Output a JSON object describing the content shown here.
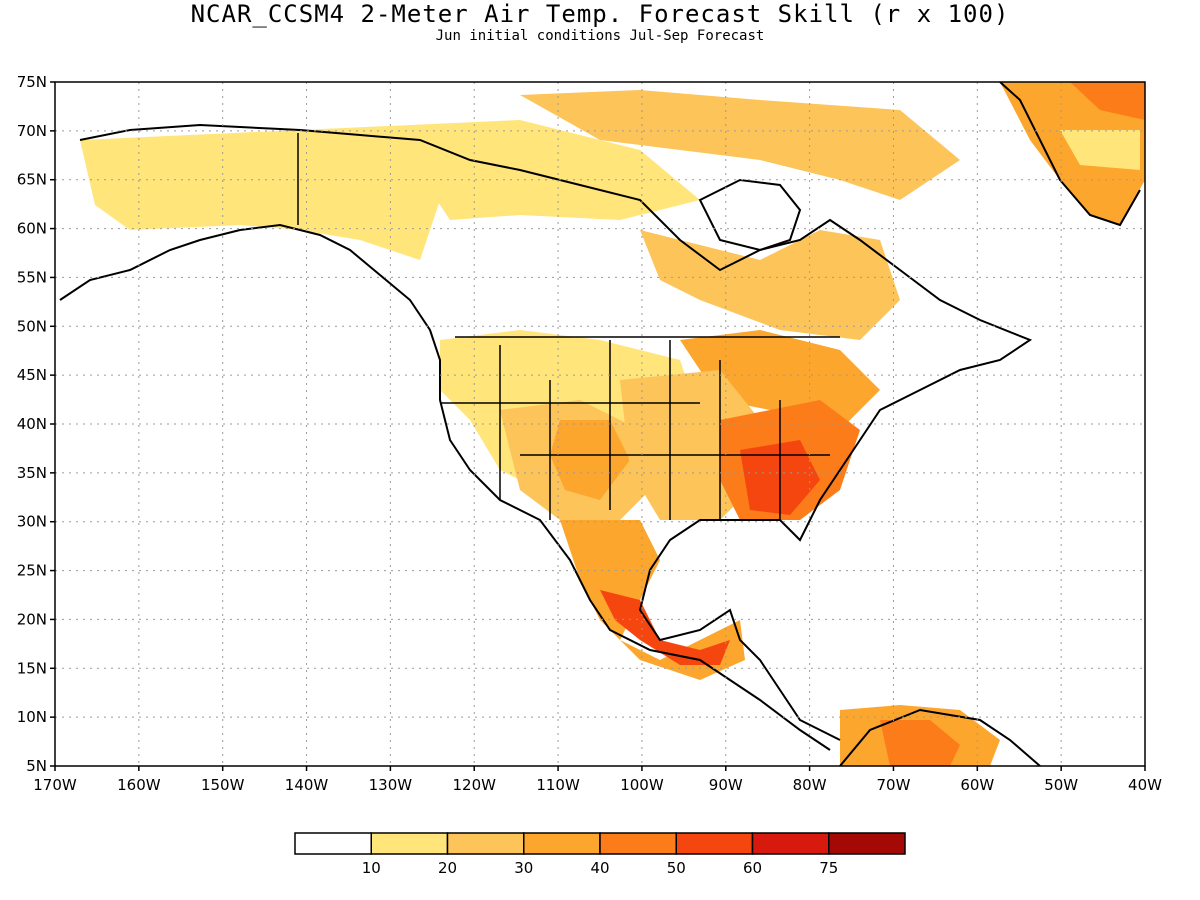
{
  "title": "NCAR_CCSM4 2-Meter Air Temp. Forecast Skill (r x 100)",
  "subtitle": "Jun initial conditions   Jul-Sep Forecast",
  "map": {
    "lon_range": [
      -170,
      -40
    ],
    "lat_range": [
      5,
      75
    ],
    "lon_ticks": [
      "170W",
      "160W",
      "150W",
      "140W",
      "130W",
      "120W",
      "110W",
      "100W",
      "90W",
      "80W",
      "70W",
      "60W",
      "50W",
      "40W"
    ],
    "lat_ticks": [
      "75N",
      "70N",
      "65N",
      "60N",
      "55N",
      "50N",
      "45N",
      "40N",
      "35N",
      "30N",
      "25N",
      "20N",
      "15N",
      "10N",
      "5N"
    ],
    "grid": "dotted"
  },
  "legend": {
    "labels": [
      "10",
      "20",
      "30",
      "40",
      "50",
      "60",
      "75"
    ],
    "colors": [
      "#ffffff",
      "#ffe57a",
      "#fdc45a",
      "#fca62d",
      "#fb7c19",
      "#f6460f",
      "#d8190d",
      "#a50906"
    ]
  }
}
